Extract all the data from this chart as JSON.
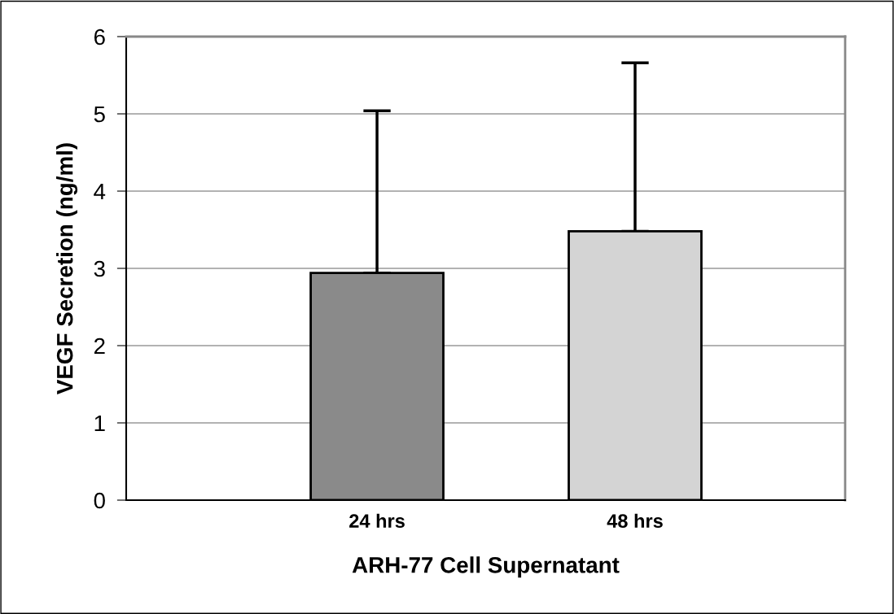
{
  "chart_data": {
    "type": "bar",
    "xlabel": "ARH-77 Cell Supernatant",
    "ylabel": "VEGF Secretion (ng/ml)",
    "categories": [
      "24 hrs",
      "48 hrs"
    ],
    "values": [
      2.94,
      3.48
    ],
    "errors": [
      [
        2.94,
        5.04
      ],
      [
        3.48,
        5.66
      ]
    ],
    "colors": [
      "#8a8a8a",
      "#d4d4d4"
    ],
    "ylim": [
      0,
      6
    ],
    "yticks": [
      0,
      1,
      2,
      3,
      4,
      5,
      6
    ],
    "grid": "y"
  }
}
